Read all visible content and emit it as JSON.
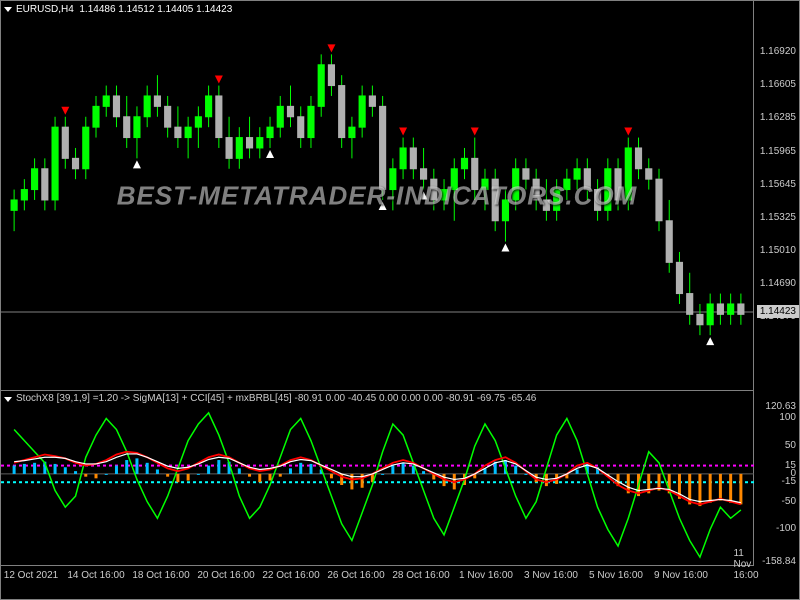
{
  "header": {
    "symbol": "EURUSD,H4",
    "ohlc": "1.14486 1.14512 1.14405 1.14423"
  },
  "watermark": "BEST-METATRADER-INDICATORS.COM",
  "main_chart": {
    "type": "candlestick",
    "ylim": [
      1.1374,
      1.1724
    ],
    "yticks": [
      1.1692,
      1.16605,
      1.16285,
      1.15965,
      1.15645,
      1.15325,
      1.1501,
      1.1469,
      1.1437
    ],
    "current_price": 1.14423,
    "current_price_label": "1.14423",
    "background_color": "#000000",
    "bull_color": "#00ff00",
    "bear_color": "#b0b0b0",
    "wick_color": "#00ff00",
    "border_color": "#808080",
    "signal_up_color": "#ffffff",
    "signal_down_color": "#ff0000",
    "candles": [
      {
        "o": 1.154,
        "h": 1.156,
        "l": 1.152,
        "c": 1.155
      },
      {
        "o": 1.155,
        "h": 1.157,
        "l": 1.154,
        "c": 1.156
      },
      {
        "o": 1.156,
        "h": 1.159,
        "l": 1.155,
        "c": 1.158
      },
      {
        "o": 1.158,
        "h": 1.159,
        "l": 1.154,
        "c": 1.155
      },
      {
        "o": 1.155,
        "h": 1.163,
        "l": 1.154,
        "c": 1.162
      },
      {
        "o": 1.162,
        "h": 1.163,
        "l": 1.158,
        "c": 1.159
      },
      {
        "o": 1.159,
        "h": 1.16,
        "l": 1.157,
        "c": 1.158
      },
      {
        "o": 1.158,
        "h": 1.163,
        "l": 1.157,
        "c": 1.162
      },
      {
        "o": 1.162,
        "h": 1.165,
        "l": 1.161,
        "c": 1.164
      },
      {
        "o": 1.164,
        "h": 1.166,
        "l": 1.163,
        "c": 1.165
      },
      {
        "o": 1.165,
        "h": 1.166,
        "l": 1.162,
        "c": 1.163
      },
      {
        "o": 1.163,
        "h": 1.165,
        "l": 1.16,
        "c": 1.161
      },
      {
        "o": 1.161,
        "h": 1.164,
        "l": 1.159,
        "c": 1.163
      },
      {
        "o": 1.163,
        "h": 1.166,
        "l": 1.162,
        "c": 1.165
      },
      {
        "o": 1.165,
        "h": 1.167,
        "l": 1.163,
        "c": 1.164
      },
      {
        "o": 1.164,
        "h": 1.165,
        "l": 1.161,
        "c": 1.162
      },
      {
        "o": 1.162,
        "h": 1.164,
        "l": 1.16,
        "c": 1.161
      },
      {
        "o": 1.161,
        "h": 1.163,
        "l": 1.159,
        "c": 1.162
      },
      {
        "o": 1.162,
        "h": 1.164,
        "l": 1.16,
        "c": 1.163
      },
      {
        "o": 1.163,
        "h": 1.166,
        "l": 1.162,
        "c": 1.165
      },
      {
        "o": 1.165,
        "h": 1.166,
        "l": 1.16,
        "c": 1.161
      },
      {
        "o": 1.161,
        "h": 1.163,
        "l": 1.158,
        "c": 1.159
      },
      {
        "o": 1.159,
        "h": 1.162,
        "l": 1.158,
        "c": 1.161
      },
      {
        "o": 1.161,
        "h": 1.163,
        "l": 1.159,
        "c": 1.16
      },
      {
        "o": 1.16,
        "h": 1.162,
        "l": 1.159,
        "c": 1.161
      },
      {
        "o": 1.161,
        "h": 1.163,
        "l": 1.16,
        "c": 1.162
      },
      {
        "o": 1.162,
        "h": 1.165,
        "l": 1.161,
        "c": 1.164
      },
      {
        "o": 1.164,
        "h": 1.166,
        "l": 1.162,
        "c": 1.163
      },
      {
        "o": 1.163,
        "h": 1.164,
        "l": 1.16,
        "c": 1.161
      },
      {
        "o": 1.161,
        "h": 1.165,
        "l": 1.16,
        "c": 1.164
      },
      {
        "o": 1.164,
        "h": 1.169,
        "l": 1.163,
        "c": 1.168
      },
      {
        "o": 1.168,
        "h": 1.169,
        "l": 1.165,
        "c": 1.166
      },
      {
        "o": 1.166,
        "h": 1.167,
        "l": 1.16,
        "c": 1.161
      },
      {
        "o": 1.161,
        "h": 1.163,
        "l": 1.159,
        "c": 1.162
      },
      {
        "o": 1.162,
        "h": 1.166,
        "l": 1.161,
        "c": 1.165
      },
      {
        "o": 1.165,
        "h": 1.166,
        "l": 1.163,
        "c": 1.164
      },
      {
        "o": 1.164,
        "h": 1.165,
        "l": 1.155,
        "c": 1.156
      },
      {
        "o": 1.156,
        "h": 1.159,
        "l": 1.154,
        "c": 1.158
      },
      {
        "o": 1.158,
        "h": 1.161,
        "l": 1.157,
        "c": 1.16
      },
      {
        "o": 1.16,
        "h": 1.161,
        "l": 1.157,
        "c": 1.158
      },
      {
        "o": 1.158,
        "h": 1.16,
        "l": 1.156,
        "c": 1.157
      },
      {
        "o": 1.157,
        "h": 1.158,
        "l": 1.154,
        "c": 1.155
      },
      {
        "o": 1.155,
        "h": 1.157,
        "l": 1.154,
        "c": 1.156
      },
      {
        "o": 1.156,
        "h": 1.159,
        "l": 1.153,
        "c": 1.158
      },
      {
        "o": 1.158,
        "h": 1.16,
        "l": 1.157,
        "c": 1.159
      },
      {
        "o": 1.159,
        "h": 1.161,
        "l": 1.155,
        "c": 1.156
      },
      {
        "o": 1.156,
        "h": 1.158,
        "l": 1.154,
        "c": 1.157
      },
      {
        "o": 1.157,
        "h": 1.158,
        "l": 1.152,
        "c": 1.153
      },
      {
        "o": 1.153,
        "h": 1.156,
        "l": 1.151,
        "c": 1.155
      },
      {
        "o": 1.155,
        "h": 1.159,
        "l": 1.154,
        "c": 1.158
      },
      {
        "o": 1.158,
        "h": 1.159,
        "l": 1.156,
        "c": 1.157
      },
      {
        "o": 1.157,
        "h": 1.158,
        "l": 1.154,
        "c": 1.155
      },
      {
        "o": 1.155,
        "h": 1.157,
        "l": 1.153,
        "c": 1.154
      },
      {
        "o": 1.154,
        "h": 1.157,
        "l": 1.153,
        "c": 1.156
      },
      {
        "o": 1.156,
        "h": 1.158,
        "l": 1.155,
        "c": 1.157
      },
      {
        "o": 1.157,
        "h": 1.159,
        "l": 1.156,
        "c": 1.158
      },
      {
        "o": 1.158,
        "h": 1.159,
        "l": 1.155,
        "c": 1.156
      },
      {
        "o": 1.156,
        "h": 1.157,
        "l": 1.153,
        "c": 1.154
      },
      {
        "o": 1.154,
        "h": 1.159,
        "l": 1.153,
        "c": 1.158
      },
      {
        "o": 1.158,
        "h": 1.159,
        "l": 1.154,
        "c": 1.155
      },
      {
        "o": 1.155,
        "h": 1.161,
        "l": 1.154,
        "c": 1.16
      },
      {
        "o": 1.16,
        "h": 1.161,
        "l": 1.157,
        "c": 1.158
      },
      {
        "o": 1.158,
        "h": 1.159,
        "l": 1.156,
        "c": 1.157
      },
      {
        "o": 1.157,
        "h": 1.158,
        "l": 1.152,
        "c": 1.153
      },
      {
        "o": 1.153,
        "h": 1.155,
        "l": 1.148,
        "c": 1.149
      },
      {
        "o": 1.149,
        "h": 1.15,
        "l": 1.145,
        "c": 1.146
      },
      {
        "o": 1.146,
        "h": 1.148,
        "l": 1.143,
        "c": 1.144
      },
      {
        "o": 1.144,
        "h": 1.145,
        "l": 1.142,
        "c": 1.143
      },
      {
        "o": 1.143,
        "h": 1.146,
        "l": 1.142,
        "c": 1.145
      },
      {
        "o": 1.145,
        "h": 1.146,
        "l": 1.143,
        "c": 1.144
      },
      {
        "o": 1.144,
        "h": 1.146,
        "l": 1.143,
        "c": 1.145
      },
      {
        "o": 1.145,
        "h": 1.146,
        "l": 1.143,
        "c": 1.144
      }
    ],
    "signals_down": [
      5,
      20,
      31,
      38,
      45,
      60
    ],
    "signals_up": [
      12,
      25,
      36,
      40,
      48,
      68
    ]
  },
  "indicator_chart": {
    "label": "StochX8 [39,1,9] =1.20 -> SigMA[13] + CCI[45] + mxBRBL[45] -80.91 0.00 -40.45 0.00 0.00 0.00 -80.91 -69.75 -65.46",
    "ylim": [
      -158.84,
      120.63
    ],
    "yticks": [
      120.63,
      100,
      50,
      15,
      0,
      -15,
      -50,
      -100,
      -158.84
    ],
    "dotted_levels": [
      15,
      -15
    ],
    "colors": {
      "cci": "#00ff00",
      "stoch": "#ff0000",
      "sigma": "#ffffff",
      "sigma2": "#a0a0ff",
      "bar_pos": "#00bfff",
      "bar_neg": "#ff8800",
      "dot_upper": "#ff00ff",
      "dot_lower": "#00ffff"
    },
    "cci_values": [
      80,
      60,
      40,
      20,
      -30,
      -60,
      -40,
      30,
      70,
      100,
      80,
      40,
      -10,
      -50,
      -80,
      -40,
      10,
      60,
      90,
      110,
      70,
      20,
      -40,
      -80,
      -60,
      -20,
      30,
      80,
      100,
      60,
      10,
      -40,
      -90,
      -120,
      -70,
      -20,
      40,
      90,
      70,
      20,
      -30,
      -80,
      -110,
      -60,
      -10,
      50,
      90,
      60,
      10,
      -40,
      -80,
      -50,
      10,
      70,
      100,
      60,
      0,
      -60,
      -100,
      -130,
      -80,
      -20,
      40,
      20,
      -30,
      -80,
      -120,
      -150,
      -100,
      -60,
      -80,
      -65
    ],
    "stoch_values": [
      20,
      25,
      30,
      35,
      32,
      28,
      20,
      15,
      18,
      25,
      35,
      40,
      38,
      30,
      20,
      10,
      5,
      10,
      20,
      30,
      35,
      30,
      20,
      10,
      5,
      8,
      15,
      25,
      30,
      25,
      15,
      5,
      -5,
      -10,
      -8,
      0,
      10,
      20,
      25,
      20,
      10,
      0,
      -10,
      -15,
      -10,
      0,
      15,
      25,
      30,
      20,
      5,
      -10,
      -15,
      -10,
      0,
      15,
      20,
      10,
      -5,
      -20,
      -30,
      -35,
      -30,
      -25,
      -30,
      -40,
      -50,
      -55,
      -50,
      -45,
      -50,
      -55
    ],
    "sigma_values": [
      22,
      24,
      27,
      30,
      30,
      28,
      22,
      18,
      18,
      22,
      30,
      36,
      36,
      30,
      22,
      14,
      10,
      12,
      18,
      26,
      30,
      28,
      20,
      12,
      8,
      10,
      14,
      22,
      26,
      24,
      16,
      8,
      0,
      -5,
      -5,
      0,
      8,
      16,
      20,
      18,
      10,
      2,
      -6,
      -10,
      -8,
      0,
      10,
      20,
      24,
      18,
      6,
      -6,
      -10,
      -8,
      0,
      10,
      16,
      10,
      -2,
      -14,
      -24,
      -30,
      -28,
      -26,
      -28,
      -36,
      -46,
      -50,
      -48,
      -46,
      -48,
      -52
    ],
    "bars": [
      15,
      18,
      20,
      22,
      18,
      12,
      5,
      -5,
      -8,
      0,
      15,
      25,
      28,
      20,
      8,
      -5,
      -15,
      -12,
      0,
      15,
      25,
      22,
      10,
      -5,
      -15,
      -12,
      -5,
      10,
      20,
      18,
      8,
      -8,
      -20,
      -28,
      -25,
      -15,
      0,
      15,
      20,
      15,
      5,
      -10,
      -22,
      -28,
      -20,
      -8,
      10,
      22,
      25,
      15,
      0,
      -15,
      -22,
      -18,
      -8,
      8,
      18,
      12,
      -5,
      -22,
      -35,
      -40,
      -35,
      -30,
      -35,
      -45,
      -55,
      -58,
      -52,
      -48,
      -52,
      -55
    ]
  },
  "x_axis": {
    "labels": [
      "12 Oct 2021",
      "14 Oct 16:00",
      "18 Oct 16:00",
      "20 Oct 16:00",
      "22 Oct 16:00",
      "26 Oct 16:00",
      "28 Oct 16:00",
      "1 Nov 16:00",
      "3 Nov 16:00",
      "5 Nov 16:00",
      "9 Nov 16:00",
      "11 Nov 16:00"
    ],
    "positions": [
      30,
      95,
      160,
      225,
      290,
      355,
      420,
      485,
      550,
      615,
      680,
      745
    ]
  }
}
